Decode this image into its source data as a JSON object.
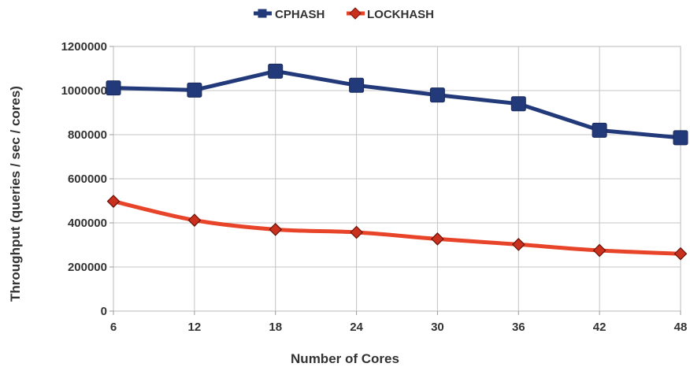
{
  "chart_data": {
    "type": "line",
    "title": "",
    "xlabel": "Number of Cores",
    "ylabel": "Throughput (queries / sec / cores)",
    "x": [
      6,
      12,
      18,
      24,
      30,
      36,
      42,
      48
    ],
    "x_tick_labels": [
      "6",
      "12",
      "18",
      "24",
      "30",
      "36",
      "42",
      "48"
    ],
    "ylim": [
      0,
      1200000
    ],
    "y_ticks": [
      0,
      200000,
      400000,
      600000,
      800000,
      1000000,
      1200000
    ],
    "y_tick_labels": [
      "0",
      "200000",
      "400000",
      "600000",
      "800000",
      "1000000",
      "1200000"
    ],
    "grid": true,
    "legend_position": "top-center",
    "series": [
      {
        "name": "CPHASH",
        "color": "#233a7a",
        "marker": "square",
        "values": [
          1012000,
          1002000,
          1088000,
          1024000,
          980000,
          940000,
          820000,
          786000
        ]
      },
      {
        "name": "LOCKHASH",
        "color": "#e8442a",
        "marker": "diamond",
        "values": [
          498000,
          412000,
          370000,
          357000,
          327000,
          302000,
          275000,
          260000
        ]
      }
    ]
  }
}
